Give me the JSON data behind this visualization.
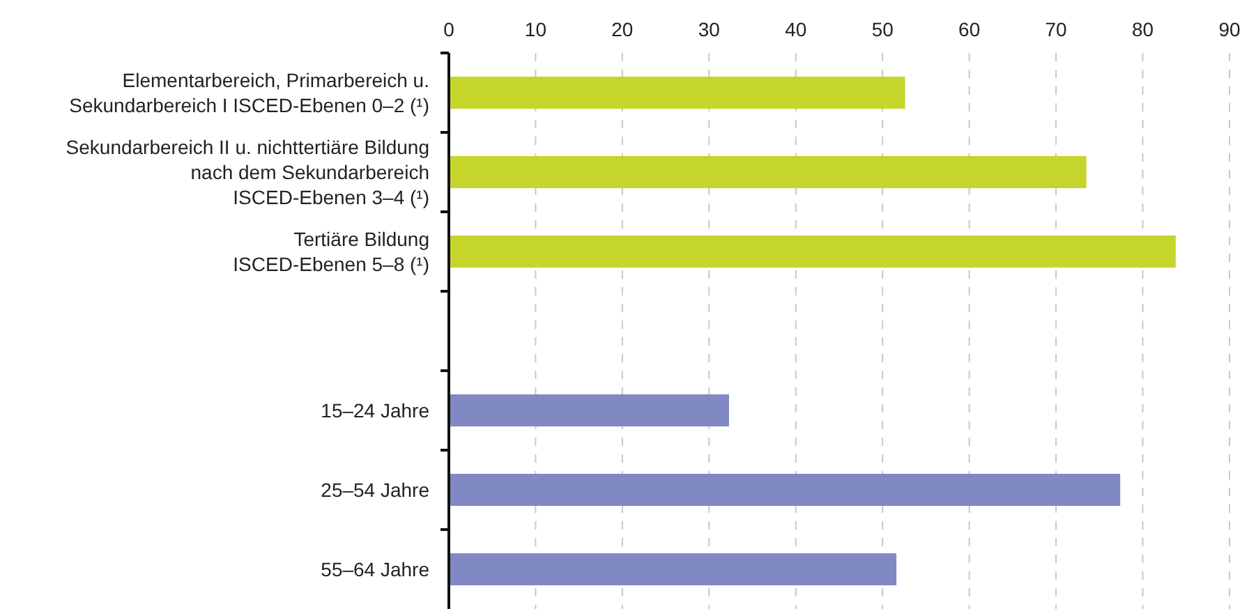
{
  "chart_data": {
    "type": "bar",
    "orientation": "horizontal",
    "categories": [
      "Elementarbereich, Primarbereich u.\nSekundarbereich I ISCED-Ebenen 0–2 (¹)",
      "Sekundarbereich II u. nichttertiäre Bildung\nnach dem Sekundarbereich\nISCED-Ebenen 3–4 (¹)",
      "Tertiäre Bildung\nISCED-Ebenen 5–8 (¹)",
      null,
      "15–24 Jahre",
      "25–54 Jahre",
      "55–64 Jahre"
    ],
    "values": [
      52.6,
      73.5,
      83.8,
      null,
      32.3,
      77.4,
      51.6
    ],
    "colors": [
      "#c5d52b",
      "#c5d52b",
      "#c5d52b",
      null,
      "#8089c3",
      "#8089c3",
      "#8089c3"
    ],
    "xlim": [
      0,
      90
    ],
    "xticks": [
      0,
      10,
      20,
      30,
      40,
      50,
      60,
      70,
      80,
      90
    ],
    "grid": "x"
  }
}
